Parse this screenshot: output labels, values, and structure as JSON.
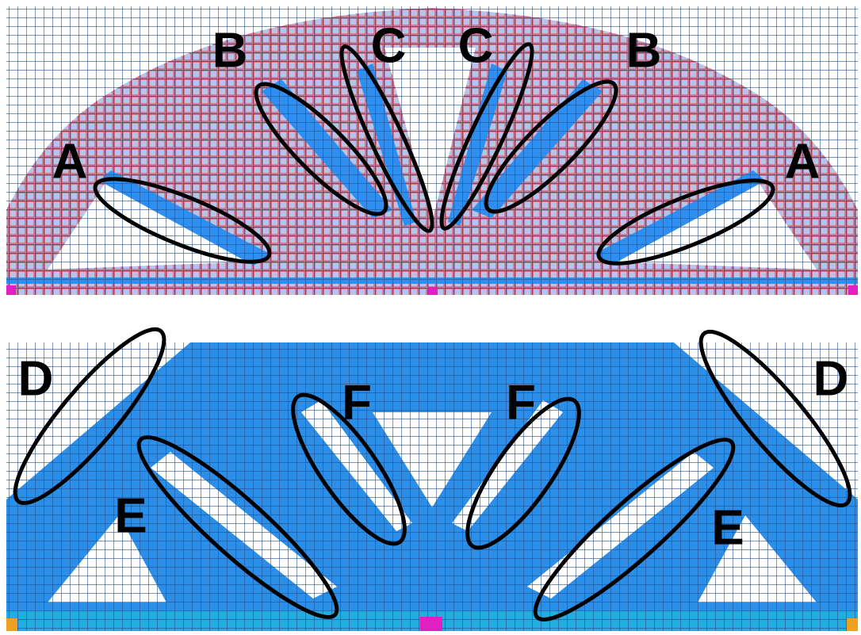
{
  "panels": [
    {
      "labels": [
        "A",
        "B",
        "C",
        "C",
        "B",
        "A"
      ]
    },
    {
      "labels": [
        "D",
        "F",
        "F",
        "D",
        "E",
        "E"
      ]
    }
  ]
}
